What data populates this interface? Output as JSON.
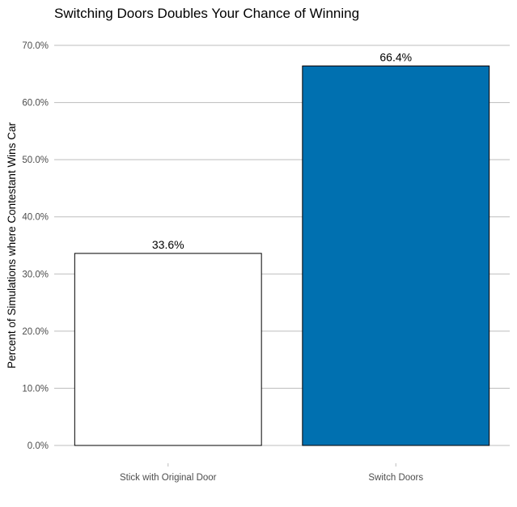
{
  "chart_data": {
    "type": "bar",
    "title": "Switching Doors Doubles Your Chance of Winning",
    "xlabel": "",
    "ylabel": "Percent of Simulations where Contestant Wins Car",
    "categories": [
      "Stick with Original Door",
      "Switch Doors"
    ],
    "values": [
      33.6,
      66.4
    ],
    "value_labels": [
      "33.6%",
      "66.4%"
    ],
    "bar_fill_colors": [
      "#ffffff",
      "#0070b0"
    ],
    "bar_stroke_color": "#000000",
    "ylim": [
      0,
      70
    ],
    "y_ticks": [
      0,
      10,
      20,
      30,
      40,
      50,
      60,
      70
    ],
    "y_tick_labels": [
      "0.0%",
      "10.0%",
      "20.0%",
      "30.0%",
      "40.0%",
      "50.0%",
      "60.0%",
      "70.0%"
    ],
    "grid": true,
    "legend": "none"
  }
}
